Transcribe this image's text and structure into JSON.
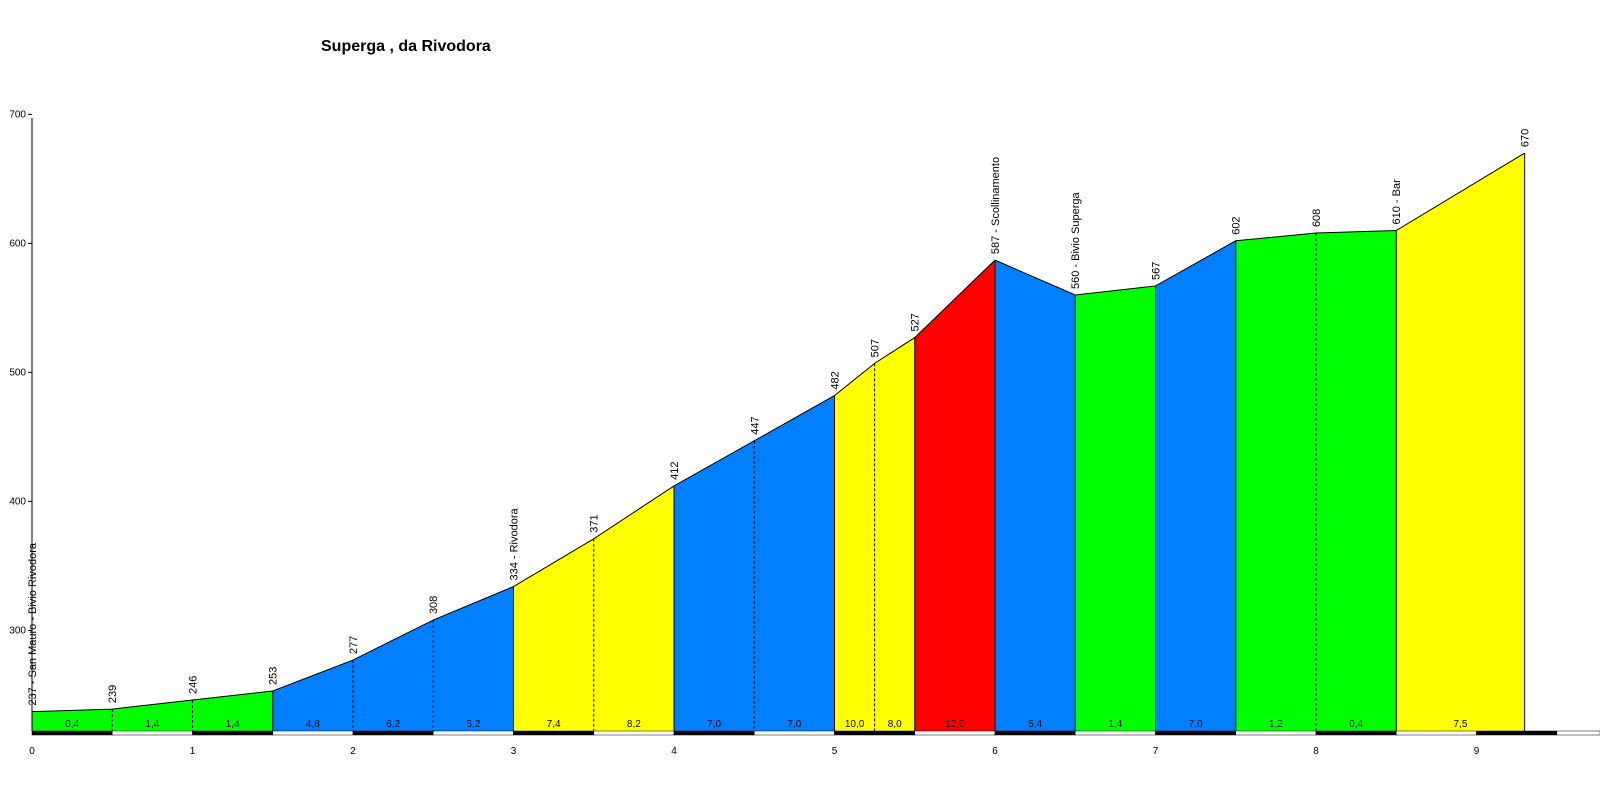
{
  "chart_data": {
    "type": "area",
    "title": "Superga , da Rivodora",
    "xlabel": "",
    "ylabel": "",
    "xlim": [
      0,
      9.75
    ],
    "ylim": [
      222,
      700
    ],
    "grid": false,
    "x_ticks": [
      "0",
      "1",
      "2",
      "3",
      "4",
      "5",
      "6",
      "7",
      "8",
      "9"
    ],
    "y_ticks": [
      "300",
      "400",
      "500",
      "600",
      "700"
    ],
    "points": [
      {
        "x": 0.0,
        "alt": 237,
        "label": "237 - San Mauro - Bivio Rivodora"
      },
      {
        "x": 0.5,
        "alt": 239,
        "label": "239"
      },
      {
        "x": 1.0,
        "alt": 246,
        "label": "246"
      },
      {
        "x": 1.5,
        "alt": 253,
        "label": "253"
      },
      {
        "x": 2.0,
        "alt": 277,
        "label": "277"
      },
      {
        "x": 2.5,
        "alt": 308,
        "label": "308"
      },
      {
        "x": 3.0,
        "alt": 334,
        "label": "334 - Rivodora"
      },
      {
        "x": 3.5,
        "alt": 371,
        "label": "371"
      },
      {
        "x": 4.0,
        "alt": 412,
        "label": "412"
      },
      {
        "x": 4.5,
        "alt": 447,
        "label": "447"
      },
      {
        "x": 5.0,
        "alt": 482,
        "label": "482"
      },
      {
        "x": 5.25,
        "alt": 507,
        "label": "507"
      },
      {
        "x": 5.5,
        "alt": 527,
        "label": "527"
      },
      {
        "x": 6.0,
        "alt": 587,
        "label": "587 - Scollinamento"
      },
      {
        "x": 6.5,
        "alt": 560,
        "label": "560 - Bivio Superga"
      },
      {
        "x": 7.0,
        "alt": 567,
        "label": "567"
      },
      {
        "x": 7.5,
        "alt": 602,
        "label": "602"
      },
      {
        "x": 8.0,
        "alt": 608,
        "label": "608"
      },
      {
        "x": 8.5,
        "alt": 610,
        "label": "610 - Bar"
      },
      {
        "x": 9.3,
        "alt": 670,
        "label": "670"
      }
    ],
    "segments": [
      {
        "grade": "0,4",
        "color": "#00ff00"
      },
      {
        "grade": "1,4",
        "color": "#00ff00"
      },
      {
        "grade": "1,4",
        "color": "#00ff00"
      },
      {
        "grade": "4,8",
        "color": "#0080ff"
      },
      {
        "grade": "6,2",
        "color": "#0080ff"
      },
      {
        "grade": "5,2",
        "color": "#0080ff"
      },
      {
        "grade": "7,4",
        "color": "#ffff00"
      },
      {
        "grade": "8,2",
        "color": "#ffff00"
      },
      {
        "grade": "7,0",
        "color": "#0080ff"
      },
      {
        "grade": "7,0",
        "color": "#0080ff"
      },
      {
        "grade": "10,0",
        "color": "#ffff00"
      },
      {
        "grade": "8,0",
        "color": "#ffff00"
      },
      {
        "grade": "12,0",
        "color": "#ff0000"
      },
      {
        "grade": "5,4",
        "color": "#0080ff"
      },
      {
        "grade": "1,4",
        "color": "#00ff00"
      },
      {
        "grade": "7,0",
        "color": "#0080ff"
      },
      {
        "grade": "1,2",
        "color": "#00ff00"
      },
      {
        "grade": "0,4",
        "color": "#00ff00"
      },
      {
        "grade": "7,5",
        "color": "#ffff00"
      }
    ]
  }
}
